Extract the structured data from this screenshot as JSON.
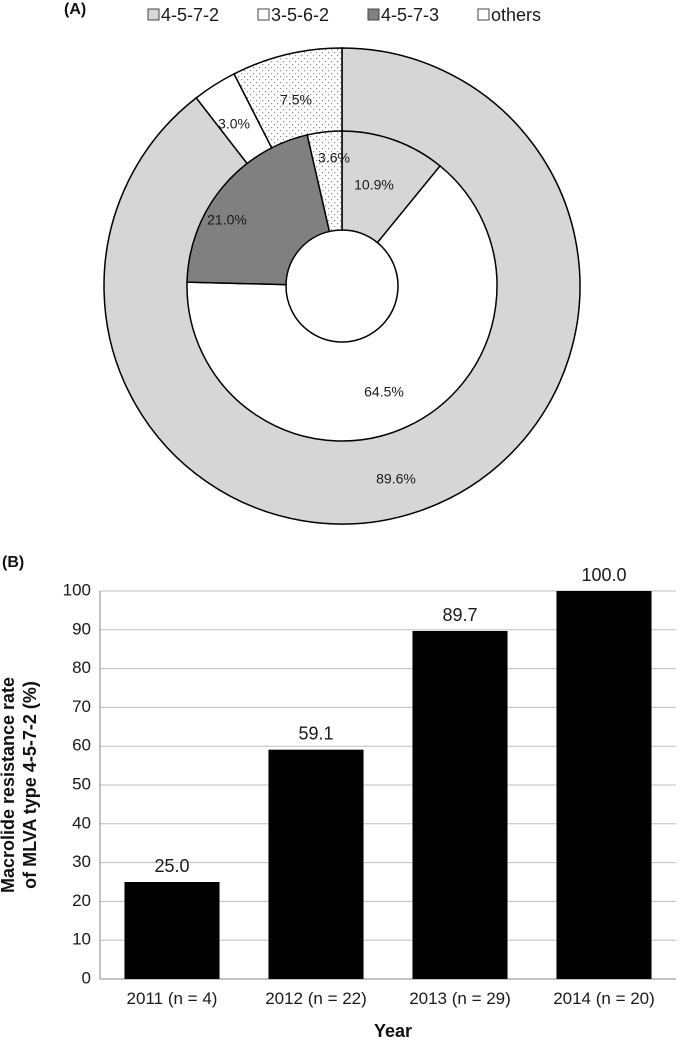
{
  "colors": {
    "light_gray": "#d6d6d6",
    "dark_gray": "#808080",
    "white": "#ffffff",
    "dotted_fill": "#ffffff",
    "bar_fill": "#000000",
    "gridline": "#bdbdbd"
  },
  "chart_data": [
    {
      "type": "donut",
      "panel_label": "(A)",
      "legend": [
        {
          "label": "4-5-7-2",
          "pattern": "solid-light-gray"
        },
        {
          "label": "3-5-6-2",
          "pattern": "white"
        },
        {
          "label": "4-5-7-3",
          "pattern": "solid-dark-gray"
        },
        {
          "label": "others",
          "pattern": "white"
        }
      ],
      "rings": [
        {
          "ring": "outer",
          "slices": [
            {
              "category": "4-5-7-2",
              "value": 89.6,
              "label": "89.6%"
            },
            {
              "category": "3-5-6-2",
              "value": 3.0,
              "label": "3.0%"
            },
            {
              "category": "others",
              "value": 7.5,
              "label": "7.5%"
            }
          ]
        },
        {
          "ring": "inner",
          "slices": [
            {
              "category": "4-5-7-2",
              "value": 10.9,
              "label": "10.9%"
            },
            {
              "category": "3-5-6-2",
              "value": 64.5,
              "label": "64.5%"
            },
            {
              "category": "4-5-7-3",
              "value": 21.0,
              "label": "21.0%"
            },
            {
              "category": "others",
              "value": 3.6,
              "label": "3.6%"
            }
          ]
        }
      ]
    },
    {
      "type": "bar",
      "panel_label": "(B)",
      "categories": [
        "2011 (n = 4)",
        "2012 (n = 22)",
        "2013 (n = 29)",
        "2014 (n = 20)"
      ],
      "values": [
        25.0,
        59.1,
        89.7,
        100.0
      ],
      "value_labels": [
        "25.0",
        "59.1",
        "89.7",
        "100.0"
      ],
      "xlabel": "Year",
      "ylabel_lines": [
        "Macrolide resistance rate",
        "of MLVA type 4-5-7-2 (%)"
      ],
      "ylim": [
        0,
        100
      ],
      "yticks": [
        "0",
        "10",
        "20",
        "30",
        "40",
        "50",
        "60",
        "70",
        "80",
        "90",
        "100"
      ],
      "grid": true
    }
  ]
}
